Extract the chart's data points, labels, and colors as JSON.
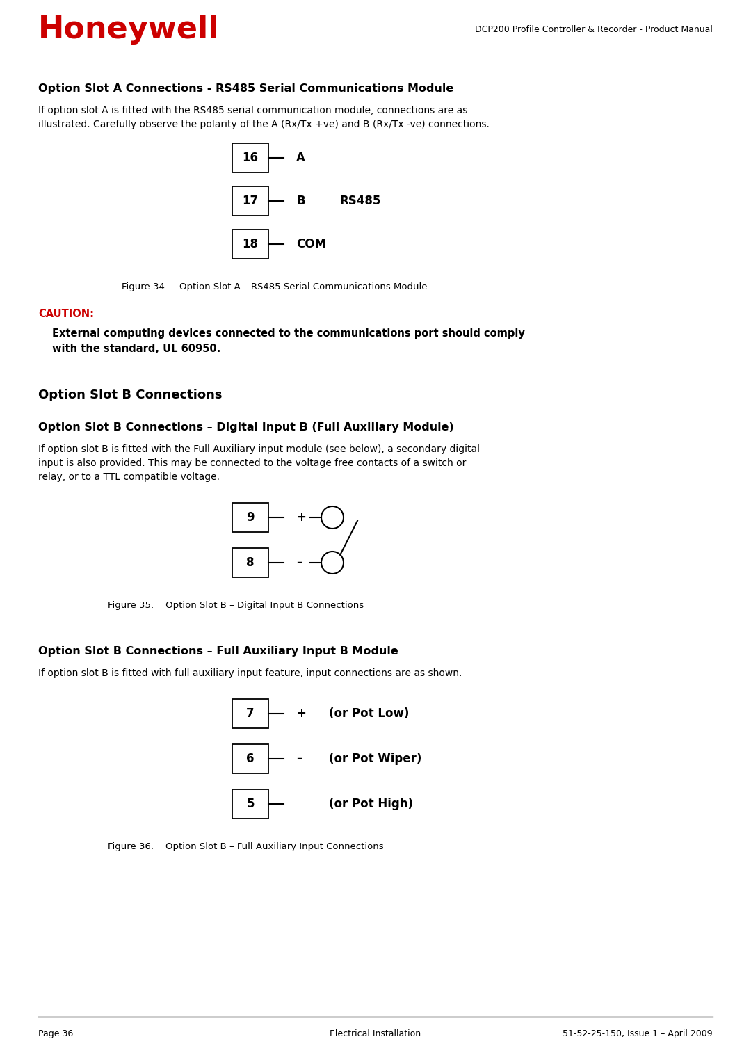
{
  "bg_color": "#ffffff",
  "header_title": "DCP200 Profile Controller & Recorder - Product Manual",
  "honeywell_color": "#cc0000",
  "section1_title": "Option Slot A Connections - RS485 Serial Communications Module",
  "section1_body1": "If option slot A is fitted with the RS485 serial communication module, connections are as",
  "section1_body2": "illustrated. Carefully observe the polarity of the A (Rx/Tx +ve) and B (Rx/Tx -ve) connections.",
  "fig34_terminals": [
    "16",
    "17",
    "18"
  ],
  "fig34_labels": [
    "A",
    "B",
    "COM"
  ],
  "fig34_extra": [
    "",
    "RS485",
    ""
  ],
  "fig34_caption": "Figure 34.    Option Slot A – RS485 Serial Communications Module",
  "caution_label": "CAUTION:",
  "caution_body1": "External computing devices connected to the communications port should comply",
  "caution_body2": "with the standard, UL 60950.",
  "section2_title": "Option Slot B Connections",
  "section3_title": "Option Slot B Connections – Digital Input B (Full Auxiliary Module)",
  "section3_body1": "If option slot B is fitted with the Full Auxiliary input module (see below), a secondary digital",
  "section3_body2": "input is also provided. This may be connected to the voltage free contacts of a switch or",
  "section3_body3": "relay, or to a TTL compatible voltage.",
  "fig35_terminals": [
    "9",
    "8"
  ],
  "fig35_labels": [
    "+",
    "–"
  ],
  "fig35_caption": "Figure 35.    Option Slot B – Digital Input B Connections",
  "section4_title": "Option Slot B Connections – Full Auxiliary Input B Module",
  "section4_body": "If option slot B is fitted with full auxiliary input feature, input connections are as shown.",
  "fig36_terminals": [
    "7",
    "6",
    "5"
  ],
  "fig36_labels": [
    "+",
    "–",
    ""
  ],
  "fig36_extra": [
    "(or Pot Low)",
    "(or Pot Wiper)",
    "(or Pot High)"
  ],
  "fig36_caption": "Figure 36.    Option Slot B – Full Auxiliary Input Connections",
  "footer_left": "Page 36",
  "footer_center": "Electrical Installation",
  "footer_right": "51-52-25-150, Issue 1 – April 2009"
}
